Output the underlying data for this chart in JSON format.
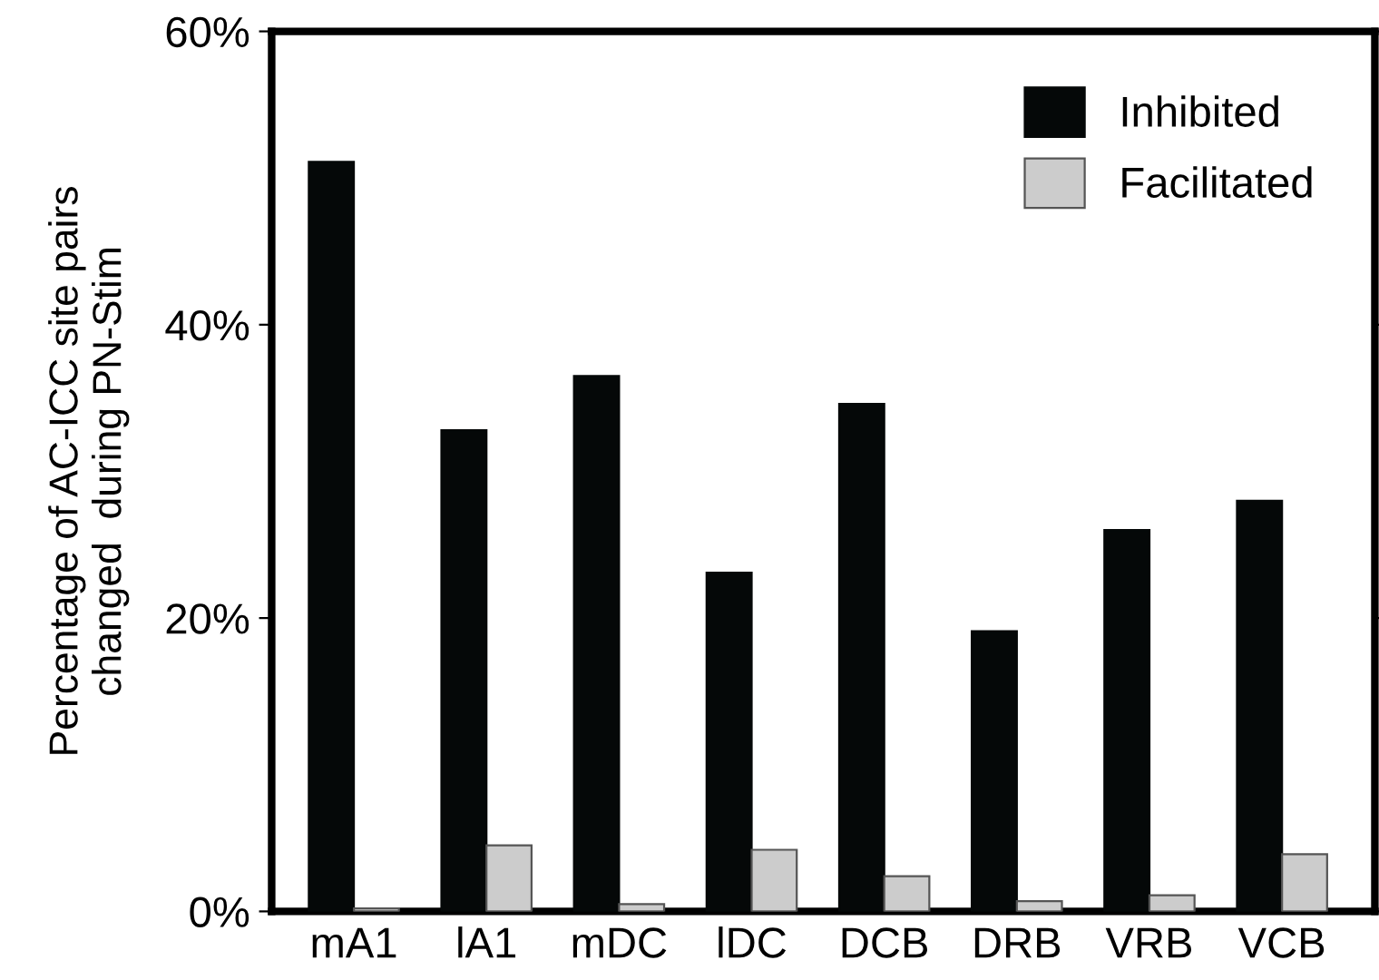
{
  "chart_data": {
    "type": "bar",
    "ylabel": "Percentage of AC-ICC site pairs\nchanged  during PN-Stim",
    "categories": [
      "mA1",
      "lA1",
      "mDC",
      "lDC",
      "DCB",
      "DRB",
      "VRB",
      "VCB"
    ],
    "series": [
      {
        "name": "Inhibited",
        "color": "#050808",
        "values": [
          51.1,
          32.8,
          36.5,
          23.1,
          34.6,
          19.1,
          26.0,
          28.0
        ]
      },
      {
        "name": "Facilitated",
        "color": "#cccccc",
        "values": [
          0.2,
          4.5,
          0.5,
          4.2,
          2.4,
          0.7,
          1.1,
          3.9
        ]
      }
    ],
    "ylim": [
      0,
      60
    ],
    "yticks": [
      {
        "value": 0,
        "label": "0%"
      },
      {
        "value": 20,
        "label": "20%"
      },
      {
        "value": 40,
        "label": "40%"
      },
      {
        "value": 60,
        "label": "60%"
      }
    ],
    "grid": false,
    "legend": "top right"
  }
}
